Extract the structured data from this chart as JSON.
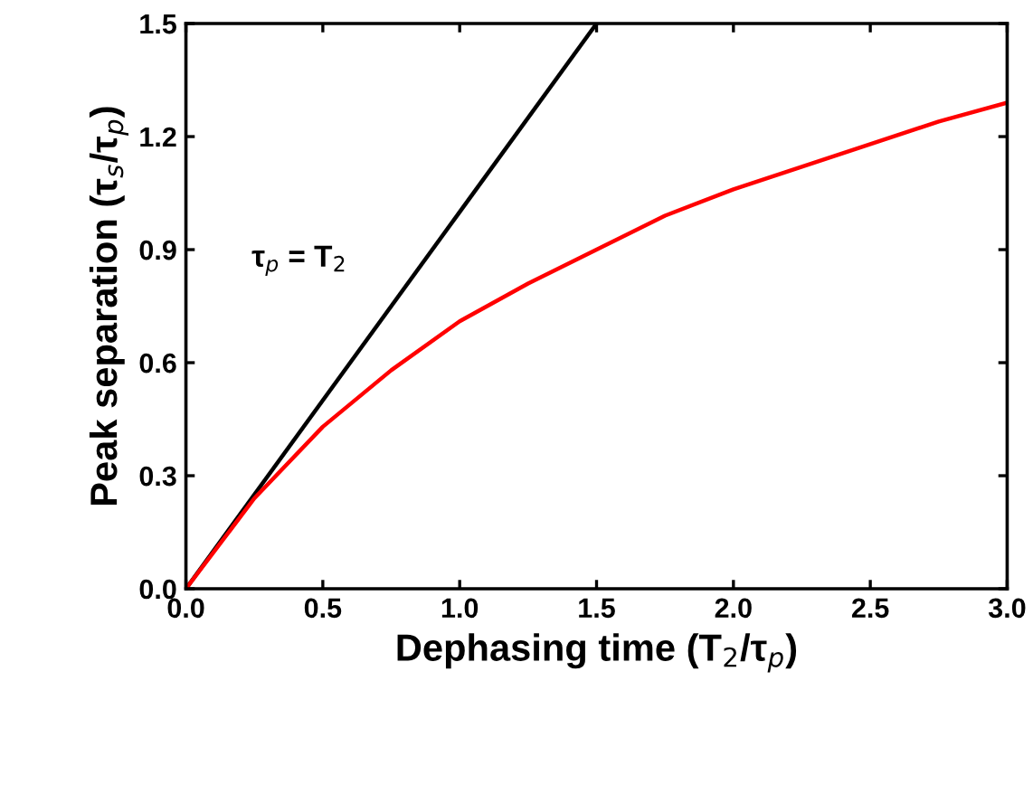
{
  "chart_data": {
    "type": "line",
    "xlabel": "Dephasing time (T$_{2}$/τ$_{p}$)",
    "ylabel": "Peak separation (τ$_{s}$/τ$_{p}$)",
    "xlim": [
      0,
      3.0
    ],
    "ylim": [
      0,
      1.5
    ],
    "xticks": [
      {
        "value": 0,
        "label": "0.0"
      },
      0.5,
      {
        "value": 1,
        "label": "1.0"
      },
      1.5,
      {
        "value": 2,
        "label": "2.0"
      },
      2.5,
      {
        "value": 3,
        "label": "3.0"
      }
    ],
    "yticks": [
      {
        "value": 0,
        "label": "0.0"
      },
      0.3,
      0.6,
      0.9,
      1.2,
      1.5
    ],
    "annotations": [
      "τ$_{p}$ = T$_{2}$"
    ],
    "grid": false,
    "legend": false,
    "marker": "none",
    "line_style": "solid",
    "series": [
      {
        "color": "#000000",
        "x": [
          0,
          1.5
        ],
        "values": [
          0,
          1.5
        ]
      },
      {
        "color": "#ff0000",
        "x": [
          0,
          0.25,
          0.5,
          0.75,
          1.0,
          1.25,
          1.5,
          1.75,
          2.0,
          2.25,
          2.5,
          2.75,
          3.0
        ],
        "values": [
          0,
          0.24,
          0.43,
          0.58,
          0.71,
          0.81,
          0.9,
          0.99,
          1.06,
          1.12,
          1.18,
          1.24,
          1.29
        ]
      }
    ]
  }
}
